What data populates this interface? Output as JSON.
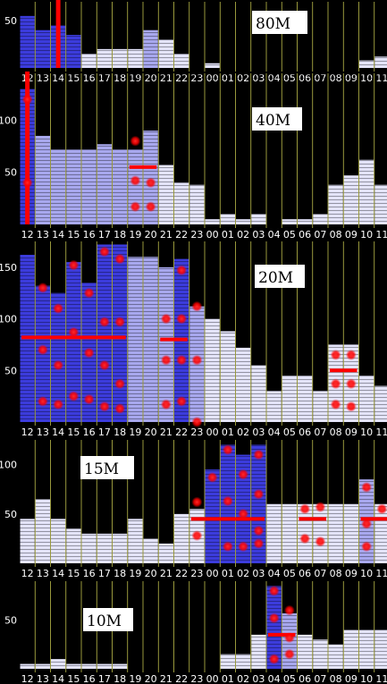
{
  "hours": [
    "12",
    "13",
    "14",
    "15",
    "16",
    "17",
    "18",
    "19",
    "20",
    "21",
    "22",
    "23",
    "00",
    "01",
    "02",
    "03",
    "04",
    "05",
    "06",
    "07",
    "08",
    "09",
    "10",
    "11"
  ],
  "colors": {
    "background": "#000000",
    "bar_light": "#e4e4fa",
    "bar_mid": "#a8a8ee",
    "bar_dark": "#3c3cdc",
    "cursor": "#ff0000",
    "hour_line": "#ffff66",
    "label_bg": "#ffffff"
  },
  "chart_data": [
    {
      "type": "bar",
      "band": "80M",
      "ylim": [
        0,
        70
      ],
      "yticks": [
        50
      ],
      "values": [
        55,
        40,
        45,
        35,
        15,
        20,
        20,
        20,
        40,
        30,
        15,
        0,
        5,
        0,
        0,
        0,
        0,
        0,
        0,
        0,
        0,
        0,
        8,
        12
      ],
      "bar_shade": [
        2,
        2,
        2,
        2,
        0,
        0,
        0,
        0,
        1,
        0,
        0,
        0,
        0,
        0,
        0,
        0,
        0,
        0,
        0,
        0,
        0,
        0,
        0,
        0
      ],
      "cursor_bars": [
        {
          "hour": "14",
          "from": 0,
          "to": 999
        }
      ],
      "medians": [],
      "dots": []
    },
    {
      "type": "bar",
      "band": "40M",
      "ylim": [
        0,
        145
      ],
      "yticks": [
        50,
        100
      ],
      "values": [
        130,
        85,
        72,
        72,
        72,
        77,
        72,
        72,
        90,
        57,
        40,
        38,
        5,
        10,
        5,
        10,
        0,
        5,
        5,
        10,
        38,
        47,
        62,
        38
      ],
      "bar_shade": [
        2,
        1,
        1,
        1,
        1,
        1,
        1,
        1,
        1,
        0,
        0,
        0,
        0,
        0,
        0,
        0,
        0,
        0,
        0,
        0,
        0,
        0,
        0,
        0
      ],
      "cursor_bars": [
        {
          "hour": "12",
          "from": 0,
          "to": 999
        }
      ],
      "medians": [
        {
          "from": "19",
          "to": "20",
          "value": 55
        }
      ],
      "dots": [
        [
          "12",
          40
        ],
        [
          "12",
          120
        ],
        [
          "19",
          80
        ],
        [
          "19",
          42
        ],
        [
          "20",
          40
        ],
        [
          "19",
          17
        ],
        [
          "20",
          17
        ]
      ]
    },
    {
      "type": "bar",
      "band": "20M",
      "ylim": [
        0,
        175
      ],
      "yticks": [
        50,
        100,
        150
      ],
      "values": [
        162,
        132,
        125,
        155,
        135,
        172,
        172,
        160,
        160,
        150,
        158,
        112,
        100,
        88,
        72,
        55,
        30,
        45,
        45,
        30,
        75,
        75,
        45,
        35
      ],
      "bar_shade": [
        2,
        2,
        2,
        2,
        2,
        2,
        2,
        1,
        1,
        1,
        2,
        1,
        0,
        0,
        0,
        0,
        0,
        0,
        0,
        0,
        0,
        0,
        0,
        0
      ],
      "cursor_bars": [],
      "medians": [
        {
          "from": "12",
          "to": "18",
          "value": 82
        },
        {
          "from": "21",
          "to": "22",
          "value": 80
        },
        {
          "from": "08",
          "to": "09",
          "value": 50
        }
      ],
      "dots": [
        [
          "13",
          130
        ],
        [
          "14",
          110
        ],
        [
          "15",
          152
        ],
        [
          "16",
          125
        ],
        [
          "17",
          165
        ],
        [
          "18",
          158
        ],
        [
          "22",
          147
        ],
        [
          "23",
          112
        ],
        [
          "21",
          100
        ],
        [
          "22",
          100
        ],
        [
          "17",
          97
        ],
        [
          "18",
          97
        ],
        [
          "15",
          87
        ],
        [
          "13",
          70
        ],
        [
          "16",
          67
        ],
        [
          "14",
          55
        ],
        [
          "17",
          55
        ],
        [
          "21",
          60
        ],
        [
          "22",
          60
        ],
        [
          "23",
          60
        ],
        [
          "18",
          37
        ],
        [
          "08",
          65
        ],
        [
          "09",
          65
        ],
        [
          "08",
          37
        ],
        [
          "09",
          37
        ],
        [
          "13",
          20
        ],
        [
          "14",
          17
        ],
        [
          "15",
          25
        ],
        [
          "16",
          22
        ],
        [
          "17",
          15
        ],
        [
          "18",
          13
        ],
        [
          "21",
          17
        ],
        [
          "22",
          20
        ],
        [
          "23",
          0
        ],
        [
          "08",
          17
        ],
        [
          "09",
          15
        ]
      ]
    },
    {
      "type": "bar",
      "band": "15M",
      "ylim": [
        0,
        125
      ],
      "yticks": [
        50,
        100
      ],
      "values": [
        45,
        65,
        45,
        35,
        30,
        30,
        30,
        45,
        25,
        20,
        50,
        55,
        95,
        120,
        110,
        120,
        60,
        60,
        60,
        60,
        60,
        60,
        85,
        60
      ],
      "bar_shade": [
        0,
        0,
        0,
        0,
        0,
        0,
        0,
        0,
        0,
        0,
        0,
        0,
        2,
        2,
        2,
        2,
        0,
        0,
        0,
        0,
        0,
        0,
        1,
        0
      ],
      "cursor_bars": [],
      "medians": [
        {
          "from": "23",
          "to": "03",
          "value": 45
        },
        {
          "from": "06",
          "to": "07",
          "value": 45
        },
        {
          "from": "10",
          "to": "11",
          "value": 45
        }
      ],
      "dots": [
        [
          "00",
          87
        ],
        [
          "01",
          115
        ],
        [
          "02",
          90
        ],
        [
          "03",
          110
        ],
        [
          "23",
          62
        ],
        [
          "01",
          63
        ],
        [
          "03",
          70
        ],
        [
          "02",
          50
        ],
        [
          "06",
          55
        ],
        [
          "07",
          57
        ],
        [
          "10",
          77
        ],
        [
          "11",
          55
        ],
        [
          "23",
          28
        ],
        [
          "03",
          33
        ],
        [
          "10",
          40
        ],
        [
          "01",
          17
        ],
        [
          "02",
          17
        ],
        [
          "03",
          20
        ],
        [
          "06",
          25
        ],
        [
          "07",
          22
        ],
        [
          "10",
          17
        ]
      ]
    },
    {
      "type": "bar",
      "band": "10M",
      "ylim": [
        0,
        90
      ],
      "yticks": [
        50
      ],
      "values": [
        5,
        5,
        10,
        5,
        5,
        5,
        5,
        0,
        0,
        0,
        0,
        0,
        0,
        15,
        15,
        35,
        85,
        57,
        35,
        30,
        25,
        40,
        40,
        40
      ],
      "bar_shade": [
        0,
        0,
        0,
        0,
        0,
        0,
        0,
        0,
        0,
        0,
        0,
        0,
        0,
        0,
        0,
        0,
        2,
        1,
        0,
        0,
        0,
        0,
        0,
        0
      ],
      "cursor_bars": [],
      "medians": [
        {
          "from": "04",
          "to": "05",
          "value": 35
        }
      ],
      "dots": [
        [
          "04",
          80
        ],
        [
          "05",
          60
        ],
        [
          "04",
          52
        ],
        [
          "04",
          10
        ],
        [
          "05",
          15
        ],
        [
          "05",
          32
        ]
      ]
    }
  ]
}
